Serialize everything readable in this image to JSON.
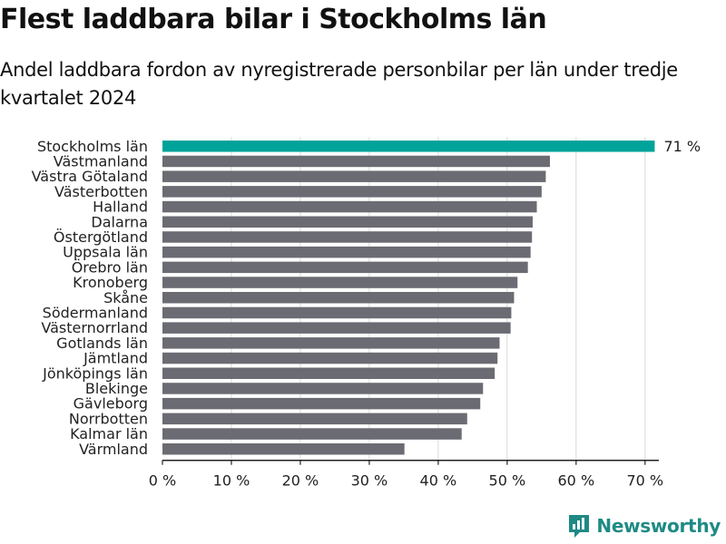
{
  "header": {
    "title": "Flest laddbara bilar i Stockholms län",
    "subtitle": "Andel laddbara fordon av nyregistrerade personbilar per län under tredje kvartalet 2024"
  },
  "chart_data": {
    "type": "bar",
    "orientation": "horizontal",
    "title": "Flest laddbara bilar i Stockholms län",
    "subtitle": "Andel laddbara fordon av nyregistrerade personbilar per län under tredje kvartalet 2024",
    "xlabel": "",
    "ylabel": "",
    "xlim": [
      0,
      72
    ],
    "ticks": [
      0,
      10,
      20,
      30,
      40,
      50,
      60,
      70
    ],
    "tick_suffix": " %",
    "grid": true,
    "highlight_label": "71 %",
    "colors": {
      "highlight": "#00a39a",
      "default": "#6b6b73",
      "grid": "#d9d9d9",
      "axis": "#222222"
    },
    "categories": [
      "Stockholms län",
      "Västmanland",
      "Västra Götaland",
      "Västerbotten",
      "Halland",
      "Dalarna",
      "Östergötland",
      "Uppsala län",
      "Örebro län",
      "Kronoberg",
      "Skåne",
      "Södermanland",
      "Västernorrland",
      "Gotlands län",
      "Jämtland",
      "Jönköpings län",
      "Blekinge",
      "Gävleborg",
      "Norrbotten",
      "Kalmar län",
      "Värmland"
    ],
    "values": [
      71.4,
      56.2,
      55.6,
      55.0,
      54.3,
      53.7,
      53.6,
      53.4,
      53.0,
      51.5,
      51.0,
      50.6,
      50.5,
      48.9,
      48.6,
      48.2,
      46.5,
      46.1,
      44.2,
      43.4,
      35.1
    ]
  },
  "brand": {
    "name": "Newsworthy",
    "color": "#1f8a85"
  }
}
